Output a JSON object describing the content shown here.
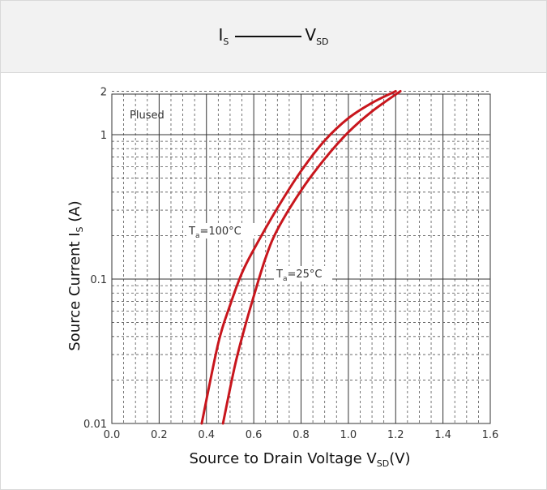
{
  "header": {
    "title_left": "I",
    "title_left_sub": "S",
    "title_right": "V",
    "title_right_sub": "SD"
  },
  "chart_data": {
    "type": "line",
    "title": "I_S — V_SD",
    "xlabel": "Source to Drain Voltage V_SD (V)",
    "ylabel": "Source Current I_S (A)",
    "xlim": [
      0.0,
      1.6
    ],
    "ylim": [
      0.01,
      2
    ],
    "yscale": "log",
    "grid": true,
    "xticks": [
      "0.0",
      "0.2",
      "0.4",
      "0.6",
      "0.8",
      "1.0",
      "1.2",
      "1.4",
      "1.6"
    ],
    "yticks": [
      "0.01",
      "0.1",
      "1",
      "2"
    ],
    "annotation": "Plused",
    "series": [
      {
        "name": "Ta=100°C",
        "label_main": "T",
        "label_sub": "a",
        "label_rest": "=100°C",
        "color": "#c8161d",
        "x": [
          0.38,
          0.45,
          0.5,
          0.55,
          0.6,
          0.7,
          0.8,
          0.9,
          1.0,
          1.1,
          1.2
        ],
        "y": [
          0.01,
          0.036,
          0.066,
          0.11,
          0.16,
          0.31,
          0.56,
          0.91,
          1.3,
          1.66,
          2.0
        ]
      },
      {
        "name": "Ta=25°C",
        "label_main": "T",
        "label_sub": "a",
        "label_rest": "=25°C",
        "color": "#c8161d",
        "x": [
          0.47,
          0.52,
          0.56,
          0.6,
          0.65,
          0.7,
          0.8,
          0.9,
          1.0,
          1.1,
          1.22
        ],
        "y": [
          0.01,
          0.025,
          0.045,
          0.076,
          0.14,
          0.22,
          0.41,
          0.68,
          1.04,
          1.45,
          2.0
        ]
      }
    ]
  },
  "axes": {
    "ylabel_main": "Source Current I",
    "ylabel_sub": "S",
    "ylabel_rest": " (A)",
    "xlabel_main": "Source to Drain Voltage V",
    "xlabel_sub": "SD",
    "xlabel_rest": "(V)"
  }
}
